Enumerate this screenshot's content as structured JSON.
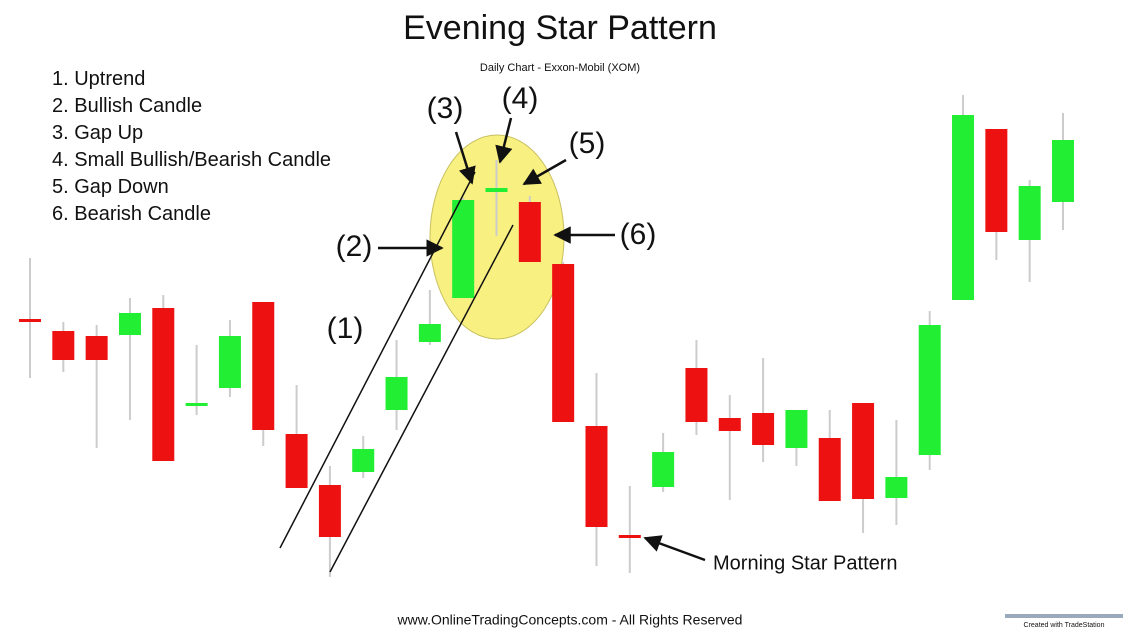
{
  "chart_data": {
    "type": "candlestick",
    "title": "Evening Star Pattern",
    "subtitle": "Daily Chart - Exxon-Mobil (XOM)",
    "legend_items": [
      "1. Uptrend",
      "2. Bullish Candle",
      "3. Gap Up",
      "4. Small Bullish/Bearish Candle",
      "5. Gap Down",
      "6. Bearish Candle"
    ],
    "annotations": [
      "(1)",
      "(2)",
      "(3)",
      "(4)",
      "(5)",
      "(6)",
      "Morning Star Pattern"
    ],
    "footer": "www.OnlineTradingConcepts.com - All Rights Reserved",
    "credit": "Created with TradeStation",
    "up_color": "#22ee33",
    "down_color": "#ee1111",
    "ylim": [
      0,
      110
    ],
    "series": {
      "open": [
        56.2,
        53.8,
        52.8,
        53,
        58.4,
        39.2,
        42.4,
        59.6,
        33.2,
        23,
        25.6,
        38,
        51.6,
        60.4,
        81.6,
        79.6,
        67.2,
        34.8,
        13,
        22.6,
        46.4,
        36.4,
        37.4,
        30.4,
        32.4,
        39.4,
        20.4,
        29,
        60,
        94.2,
        72,
        79.6
      ],
      "high": [
        68.4,
        55.6,
        55,
        60.4,
        61,
        51,
        56,
        59.6,
        43,
        26.8,
        32.8,
        52,
        62,
        80.4,
        88,
        80.8,
        67.6,
        45.4,
        22.8,
        33.4,
        52,
        41,
        48.4,
        38,
        38,
        39.4,
        36,
        57.8,
        101,
        94.2,
        84,
        97.4
      ],
      "low": [
        44.4,
        45.6,
        30.4,
        36,
        27.8,
        37,
        40.6,
        30.8,
        22.4,
        4.6,
        24.4,
        34,
        51,
        60.4,
        72.8,
        67.6,
        35.6,
        6.8,
        5.4,
        21.6,
        33,
        20,
        27.6,
        26.8,
        19.8,
        13.4,
        15,
        26,
        60,
        68,
        63.6,
        74
      ],
      "close": [
        56,
        48,
        48,
        57.4,
        27.8,
        39.4,
        52.8,
        34,
        22.4,
        12.6,
        30.2,
        44.6,
        55.2,
        80,
        82.4,
        67.6,
        35.6,
        14.6,
        12.8,
        29.6,
        35.6,
        33.8,
        31,
        38,
        19.8,
        20.2,
        24.6,
        55,
        97,
        73.6,
        82.8,
        92
      ]
    }
  }
}
